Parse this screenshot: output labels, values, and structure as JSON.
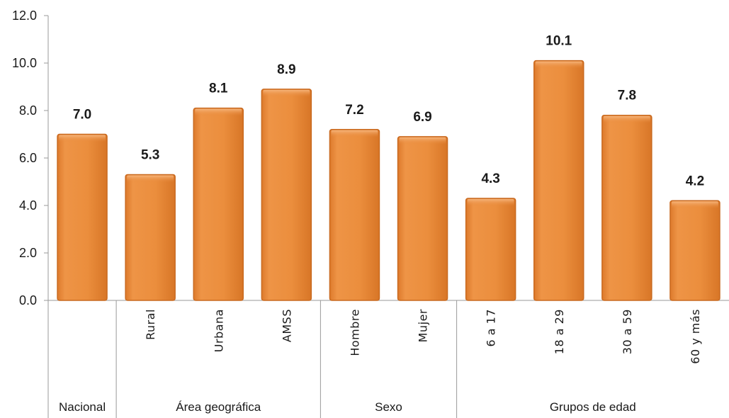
{
  "chart_data": {
    "type": "bar",
    "title": "",
    "xlabel": "",
    "ylabel": "",
    "ylim": [
      0,
      12
    ],
    "yticks": [
      0,
      2,
      4,
      6,
      8,
      10,
      12
    ],
    "ytick_labels": [
      "0.0",
      "2.0",
      "4.0",
      "6.0",
      "8.0",
      "10.0",
      "12.0"
    ],
    "categories": [
      "",
      "Rural",
      "Urbana",
      "AMSS",
      "Hombre",
      "Mujer",
      "6 a 17",
      "18 a 29",
      "30 a 59",
      "60 y más"
    ],
    "values": [
      7.0,
      5.3,
      8.1,
      8.9,
      7.2,
      6.9,
      4.3,
      10.1,
      7.8,
      4.2
    ],
    "value_labels": [
      "7.0",
      "5.3",
      "8.1",
      "8.9",
      "7.2",
      "6.9",
      "4.3",
      "10.1",
      "7.8",
      "4.2"
    ],
    "groups": [
      {
        "label": "Nacional",
        "start": 0,
        "count": 1
      },
      {
        "label": "Área geográfica",
        "start": 1,
        "count": 3
      },
      {
        "label": "Sexo",
        "start": 4,
        "count": 2
      },
      {
        "label": "Grupos de edad",
        "start": 6,
        "count": 4
      }
    ],
    "bar_color": "#E8893A",
    "bar_edge_color": "#C96A20",
    "grid": false,
    "legend": "none"
  }
}
